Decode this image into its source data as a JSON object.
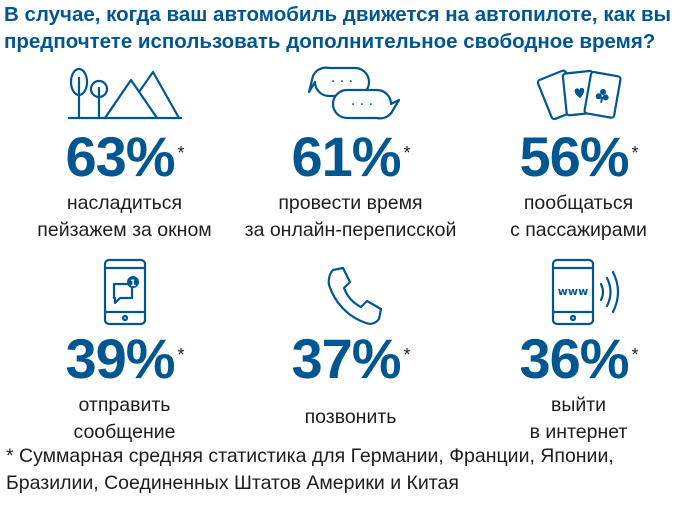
{
  "title_lines": [
    "В случае, когда ваш автомобиль движется на автопилоте, как вы",
    "предпочтете использовать дополнительное свободное время?"
  ],
  "chart_data": {
    "type": "table",
    "unit": "%",
    "footnote_marker": "*",
    "items": [
      {
        "value": 63,
        "label": "63%",
        "description": [
          "насладиться",
          "пейзажем за окном"
        ],
        "icon": "landscape-icon"
      },
      {
        "value": 61,
        "label": "61%",
        "description": [
          "провести время",
          "за онлайн-переписской"
        ],
        "icon": "chat-bubbles-icon"
      },
      {
        "value": 56,
        "label": "56%",
        "description": [
          "пообщаться",
          "с пассажирами"
        ],
        "icon": "playing-cards-icon"
      },
      {
        "value": 39,
        "label": "39%",
        "description": [
          "отправить",
          "сообщение"
        ],
        "icon": "phone-message-icon"
      },
      {
        "value": 37,
        "label": "37%",
        "description": [
          "позвонить"
        ],
        "icon": "telephone-handset-icon"
      },
      {
        "value": 36,
        "label": "36%",
        "description": [
          "выйти",
          "в интернет"
        ],
        "icon": "phone-internet-icon"
      }
    ]
  },
  "icons": {
    "chat_dots": "· · ·",
    "www": "www",
    "notification_count": "1"
  },
  "footnote_lines": [
    "* Суммарная средняя статистика для Германии, Франции, Японии,",
    "Бразилии, Соединенных Штатов Америки и Китая"
  ],
  "colors": {
    "accent": "#005691",
    "text": "#1d1d1d",
    "background": "#ffffff"
  }
}
